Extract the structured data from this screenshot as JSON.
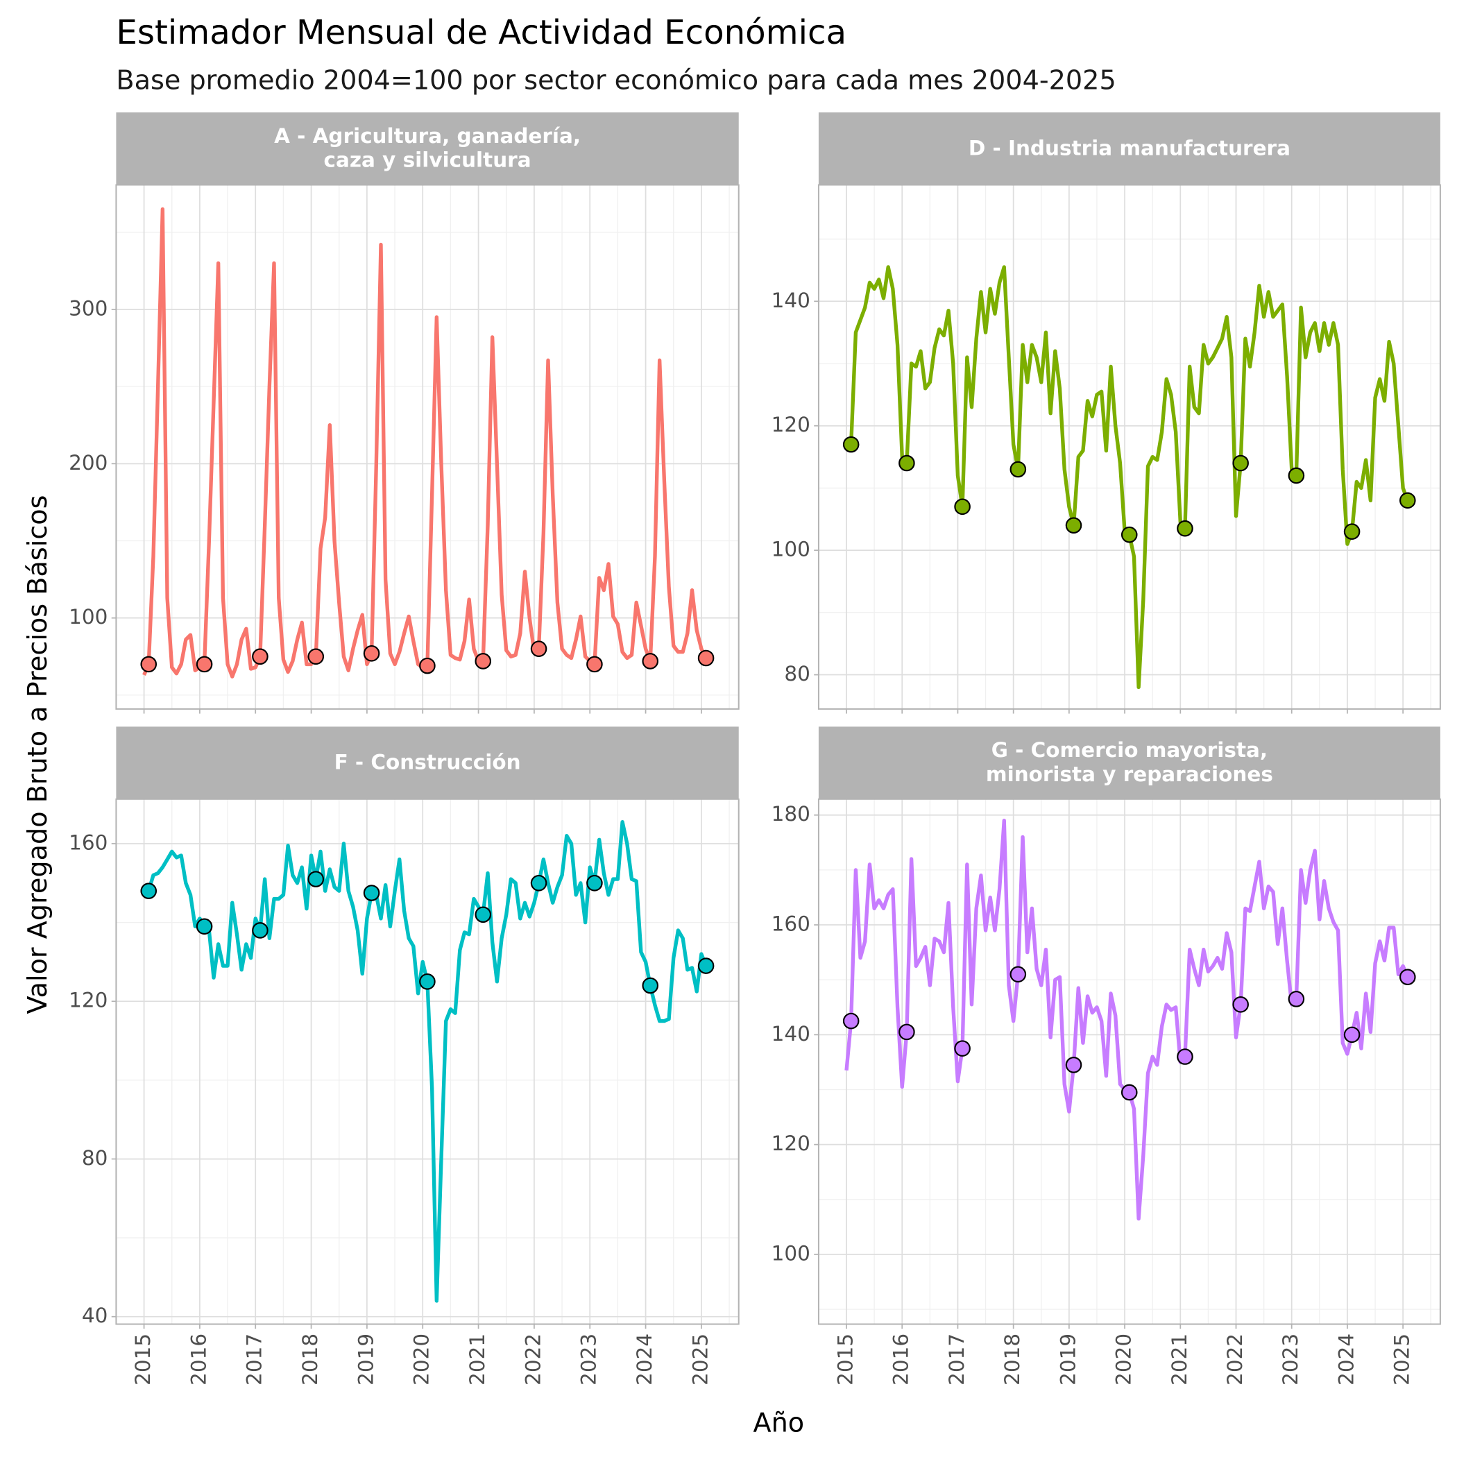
{
  "chart_data": {
    "type": "line",
    "title": "Estimador Mensual de Actividad Económica",
    "subtitle": "Base promedio 2004=100 por sector económico para cada mes 2004-2025",
    "xlabel": "Año",
    "ylabel": "Valor Agregado Bruto a Precios Básicos",
    "x": [
      2015,
      2015.083,
      2015.167,
      2015.25,
      2015.333,
      2015.417,
      2015.5,
      2015.583,
      2015.667,
      2015.75,
      2015.833,
      2015.917,
      2016,
      2016.083,
      2016.167,
      2016.25,
      2016.333,
      2016.417,
      2016.5,
      2016.583,
      2016.667,
      2016.75,
      2016.833,
      2016.917,
      2017,
      2017.083,
      2017.167,
      2017.25,
      2017.333,
      2017.417,
      2017.5,
      2017.583,
      2017.667,
      2017.75,
      2017.833,
      2017.917,
      2018,
      2018.083,
      2018.167,
      2018.25,
      2018.333,
      2018.417,
      2018.5,
      2018.583,
      2018.667,
      2018.75,
      2018.833,
      2018.917,
      2019,
      2019.083,
      2019.167,
      2019.25,
      2019.333,
      2019.417,
      2019.5,
      2019.583,
      2019.667,
      2019.75,
      2019.833,
      2019.917,
      2020,
      2020.083,
      2020.167,
      2020.25,
      2020.333,
      2020.417,
      2020.5,
      2020.583,
      2020.667,
      2020.75,
      2020.833,
      2020.917,
      2021,
      2021.083,
      2021.167,
      2021.25,
      2021.333,
      2021.417,
      2021.5,
      2021.583,
      2021.667,
      2021.75,
      2021.833,
      2021.917,
      2022,
      2022.083,
      2022.167,
      2022.25,
      2022.333,
      2022.417,
      2022.5,
      2022.583,
      2022.667,
      2022.75,
      2022.833,
      2022.917,
      2023,
      2023.083,
      2023.167,
      2023.25,
      2023.333,
      2023.417,
      2023.5,
      2023.583,
      2023.667,
      2023.75,
      2023.833,
      2023.917,
      2024,
      2024.083,
      2024.167,
      2024.25,
      2024.333,
      2024.417,
      2024.5,
      2024.583,
      2024.667,
      2024.75,
      2024.833,
      2024.917,
      2025,
      2025.083
    ],
    "xlim": [
      2014.5,
      2025.67
    ],
    "xticks": [
      2015,
      2016,
      2017,
      2018,
      2019,
      2020,
      2021,
      2022,
      2023,
      2024,
      2025
    ],
    "xminor": [
      2015.5,
      2016.5,
      2017.5,
      2018.5,
      2019.5,
      2020.5,
      2021.5,
      2022.5,
      2023.5,
      2024.5,
      2025.5
    ],
    "grid": true,
    "facets": [
      {
        "title": "A - Agricultura, ganadería,\ncaza y silvicultura",
        "color": "#F8766D",
        "ylim": [
          41,
          380.7
        ],
        "yticks": [
          100,
          200,
          300
        ],
        "yminor": [
          50,
          150,
          250,
          350
        ],
        "values": [
          63,
          70,
          140,
          250,
          365,
          113,
          68,
          64,
          70,
          86,
          89,
          66,
          68,
          70,
          150,
          240,
          330,
          113,
          70,
          62,
          70,
          86,
          93,
          67,
          68,
          75,
          160,
          250,
          330,
          113,
          73,
          65,
          72,
          86,
          97,
          70,
          70,
          75,
          145,
          165,
          225,
          150,
          110,
          75,
          66,
          80,
          92,
          102,
          70,
          77,
          200,
          342,
          125,
          77,
          70,
          78,
          90,
          101,
          85,
          70,
          68,
          69,
          180,
          295,
          200,
          118,
          76,
          74,
          73,
          85,
          112,
          80,
          72,
          72,
          160,
          282,
          200,
          115,
          79,
          75,
          76,
          90,
          130,
          100,
          78,
          80,
          155,
          267,
          180,
          110,
          80,
          76,
          74,
          86,
          101,
          75,
          72,
          70,
          126,
          118,
          135,
          101,
          96,
          78,
          74,
          76,
          110,
          95,
          80,
          72,
          140,
          267,
          190,
          120,
          82,
          78,
          78,
          90,
          118,
          92,
          80,
          74
        ],
        "points": {
          "x": [
            2015.083,
            2016.083,
            2017.083,
            2018.083,
            2019.083,
            2020.083,
            2021.083,
            2022.083,
            2023.083,
            2024.083,
            2025.083
          ],
          "values": [
            70,
            70,
            75,
            75,
            77,
            69,
            72,
            80,
            70,
            72,
            74
          ]
        }
      },
      {
        "title": "D - Industria manufacturera",
        "color": "#7CAE00",
        "ylim": [
          74.5,
          158.7
        ],
        "yticks": [
          80,
          100,
          120,
          140
        ],
        "yminor": [
          90,
          110,
          130,
          150
        ],
        "values": [
          117,
          117,
          135,
          137,
          139,
          143,
          142,
          143.5,
          140.5,
          145.5,
          142,
          133,
          115,
          114,
          130,
          129.5,
          132,
          126,
          127,
          132.5,
          135.5,
          134.5,
          138.5,
          130,
          112,
          107,
          131,
          123,
          134,
          141.5,
          135,
          142,
          138,
          143,
          145.5,
          131,
          117,
          113,
          133,
          127,
          133,
          131,
          127,
          135,
          122,
          132,
          126,
          113,
          107,
          104,
          115,
          116,
          124,
          121.5,
          125,
          125.5,
          116,
          129.5,
          120,
          114,
          103,
          102.5,
          99,
          78,
          92,
          113.5,
          115,
          114.5,
          119,
          127.5,
          125,
          119,
          104.5,
          103.5,
          129.5,
          123,
          122,
          133,
          130,
          131,
          132.5,
          134,
          137.5,
          131,
          105.5,
          114,
          134,
          129.5,
          135,
          142.5,
          137.5,
          141.5,
          137.5,
          138.5,
          139.5,
          128,
          113,
          112,
          139,
          131,
          135,
          136.5,
          132,
          136.5,
          133,
          136.5,
          133,
          113,
          101,
          103,
          111,
          110,
          114.5,
          108,
          124.5,
          127.5,
          124,
          133.5,
          130,
          120,
          110,
          108
        ],
        "points": {
          "x": [
            2015.083,
            2016.083,
            2017.083,
            2018.083,
            2019.083,
            2020.083,
            2021.083,
            2022.083,
            2023.083,
            2024.083,
            2025.083
          ],
          "values": [
            117,
            114,
            107,
            113,
            104,
            102.5,
            103.5,
            114,
            112,
            103,
            108
          ]
        }
      },
      {
        "title": "F - Construcción",
        "color": "#00BFC4",
        "ylim": [
          38.1,
          171.3
        ],
        "yticks": [
          40,
          80,
          120,
          160
        ],
        "yminor": [
          60,
          100,
          140
        ],
        "values": [
          148,
          148,
          152,
          152.5,
          154,
          156,
          158,
          156.5,
          157,
          150,
          147,
          139,
          141,
          139,
          138,
          126,
          134.5,
          129,
          129,
          145,
          137,
          128,
          134.5,
          131,
          141,
          138,
          151,
          136,
          146,
          146,
          147,
          159.5,
          152,
          150,
          154,
          143.5,
          157,
          151,
          158,
          148,
          153.5,
          149,
          148,
          160,
          148,
          144,
          138,
          127,
          141,
          147.5,
          147,
          141,
          149.5,
          139,
          148,
          156,
          143,
          136,
          134,
          122,
          130,
          125,
          98,
          44,
          80,
          115,
          118,
          117,
          133,
          137.5,
          137,
          146,
          144,
          142,
          152.5,
          135,
          125,
          136,
          142,
          151,
          150,
          141,
          145,
          141.5,
          145,
          150,
          156,
          150,
          145,
          149,
          152,
          162,
          160,
          147,
          150,
          140,
          154,
          150,
          161,
          152.5,
          147,
          151,
          151,
          165.5,
          160,
          151,
          150.5,
          132.5,
          130,
          124,
          119,
          115,
          115,
          115.5,
          131,
          138,
          136,
          128,
          128.5,
          122.5,
          132,
          129
        ],
        "points": {
          "x": [
            2015.083,
            2016.083,
            2017.083,
            2018.083,
            2019.083,
            2020.083,
            2021.083,
            2022.083,
            2023.083,
            2024.083,
            2025.083
          ],
          "values": [
            148,
            139,
            138,
            151,
            147.5,
            125,
            142,
            150,
            150,
            124,
            129
          ]
        }
      },
      {
        "title": "G - Comercio mayorista,\nminorista y reparaciones",
        "color": "#C77CFF",
        "ylim": [
          87.3,
          182.9
        ],
        "yticks": [
          100,
          120,
          140,
          160,
          180
        ],
        "yminor": [
          90,
          110,
          130,
          150,
          170
        ],
        "values": [
          133.5,
          142.5,
          170,
          154,
          157,
          171,
          163,
          164.5,
          163,
          165.5,
          166.5,
          145,
          130.5,
          140.5,
          172,
          152.5,
          154,
          156,
          149,
          157.5,
          157,
          155,
          164,
          145,
          131.5,
          137.5,
          171,
          145.5,
          163,
          169,
          159,
          165,
          159,
          166.5,
          179,
          149,
          142.5,
          151,
          176,
          155,
          163,
          152,
          149,
          155.5,
          139.5,
          150,
          150.5,
          131,
          126,
          134.5,
          148.5,
          138.5,
          147,
          144,
          145,
          142.5,
          132.5,
          147.5,
          143.5,
          131,
          130,
          129.5,
          126.5,
          106.5,
          118,
          133,
          136,
          134.5,
          141.5,
          145.5,
          144.5,
          145,
          135,
          136,
          155.5,
          152,
          149,
          155.5,
          151.5,
          152.5,
          154,
          152,
          158.5,
          155,
          139.5,
          145.5,
          163,
          162.5,
          167,
          171.5,
          163,
          167,
          166,
          156.5,
          163,
          153.5,
          145.5,
          146.5,
          170,
          164,
          170,
          173.5,
          161,
          168,
          163,
          160.5,
          159,
          138.5,
          136.5,
          140,
          144,
          137.5,
          147.5,
          140.5,
          153,
          157,
          153.5,
          159.5,
          159.5,
          151,
          152.5,
          150.5
        ],
        "points": {
          "x": [
            2015.083,
            2016.083,
            2017.083,
            2018.083,
            2019.083,
            2020.083,
            2021.083,
            2022.083,
            2023.083,
            2024.083,
            2025.083
          ],
          "values": [
            142.5,
            140.5,
            137.5,
            151,
            134.5,
            129.5,
            136,
            145.5,
            146.5,
            140,
            150.5
          ]
        }
      }
    ]
  }
}
